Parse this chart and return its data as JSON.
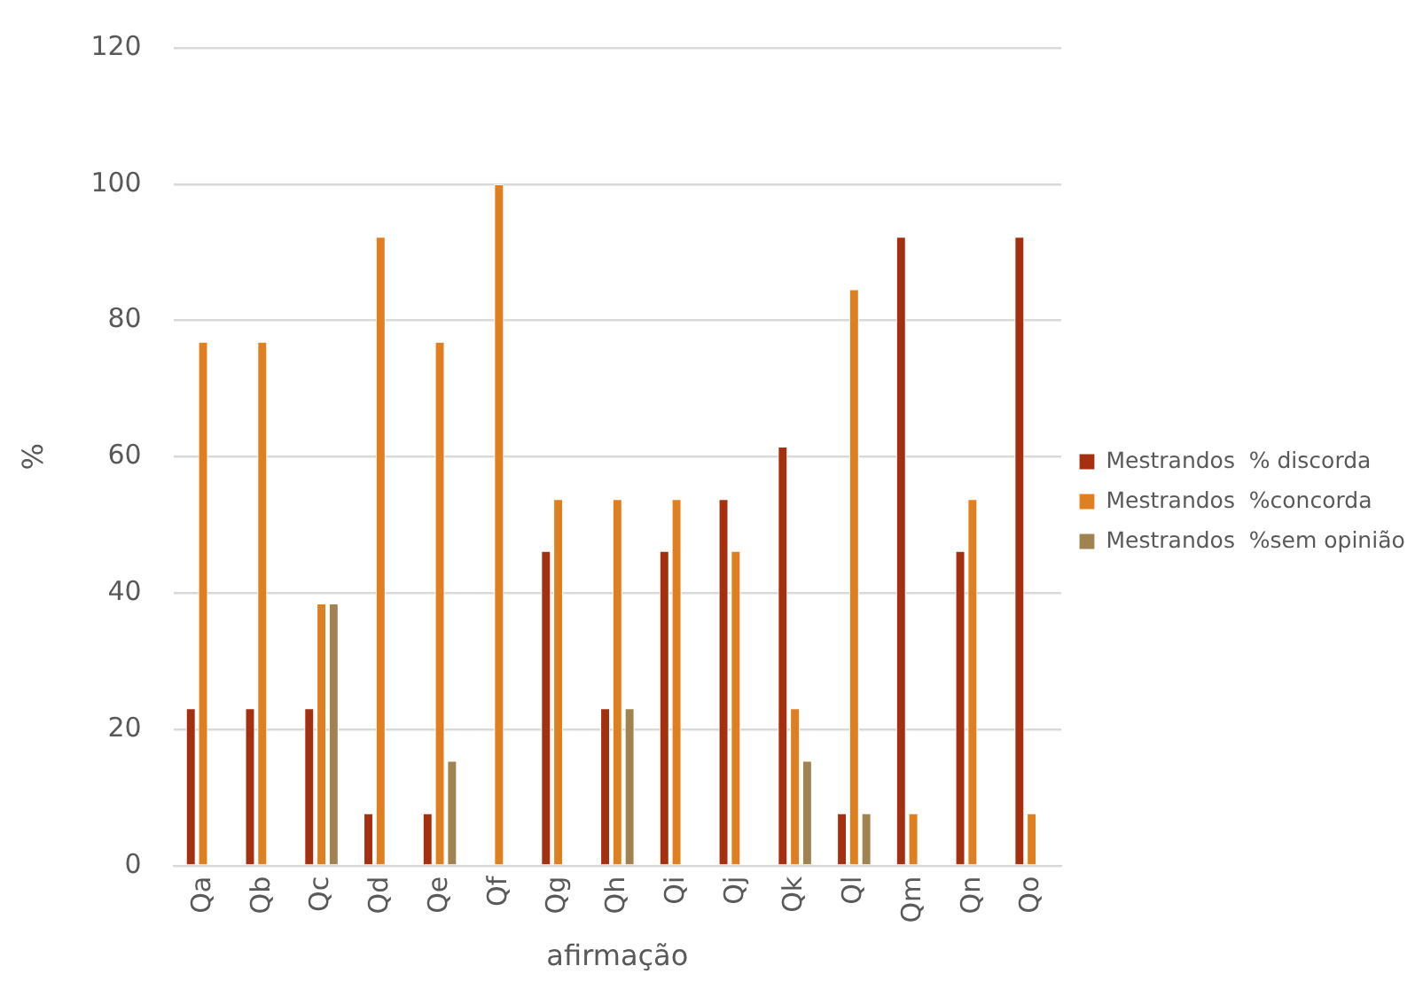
{
  "chart_data": {
    "type": "bar",
    "categories": [
      "Qa",
      "Qb",
      "Qc",
      "Qd",
      "Qe",
      "Qf",
      "Qg",
      "Qh",
      "Qi",
      "Qj",
      "Qk",
      "Ql",
      "Qm",
      "Qn",
      "Qo"
    ],
    "series": [
      {
        "name": "Mestrandos  % discorda",
        "color": "#a5300f",
        "values": [
          23.1,
          23.1,
          23.1,
          7.7,
          7.7,
          0,
          46.2,
          23.1,
          46.2,
          53.8,
          61.5,
          7.7,
          92.3,
          46.2,
          92.3
        ]
      },
      {
        "name": "Mestrandos  %concorda",
        "color": "#e07f1f",
        "values": [
          76.9,
          76.9,
          38.5,
          92.3,
          76.9,
          100,
          53.8,
          53.8,
          53.8,
          46.2,
          23.1,
          84.6,
          7.7,
          53.8,
          7.7
        ]
      },
      {
        "name": "Mestrandos  %sem opinião",
        "color": "#a08350",
        "values": [
          0,
          0,
          38.5,
          0,
          15.4,
          0,
          0,
          23.1,
          0,
          0,
          15.4,
          7.7,
          0,
          0,
          0
        ]
      }
    ],
    "xlabel": "afirmação",
    "ylabel": "%",
    "ylim": [
      0,
      120
    ],
    "yticks": [
      0,
      20,
      40,
      60,
      80,
      100,
      120
    ],
    "grid": "y",
    "legend": "right"
  }
}
